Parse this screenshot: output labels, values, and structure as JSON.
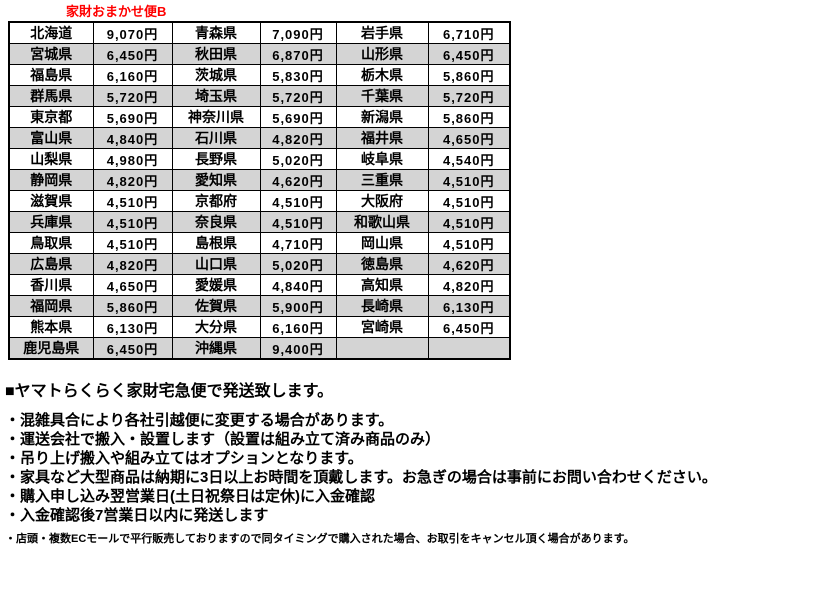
{
  "title": "家財おまかせ便B",
  "table": {
    "rows": [
      [
        "北海道",
        "9,070円",
        "青森県",
        "7,090円",
        "岩手県",
        "6,710円"
      ],
      [
        "宮城県",
        "6,450円",
        "秋田県",
        "6,870円",
        "山形県",
        "6,450円"
      ],
      [
        "福島県",
        "6,160円",
        "茨城県",
        "5,830円",
        "栃木県",
        "5,860円"
      ],
      [
        "群馬県",
        "5,720円",
        "埼玉県",
        "5,720円",
        "千葉県",
        "5,720円"
      ],
      [
        "東京都",
        "5,690円",
        "神奈川県",
        "5,690円",
        "新潟県",
        "5,860円"
      ],
      [
        "富山県",
        "4,840円",
        "石川県",
        "4,820円",
        "福井県",
        "4,650円"
      ],
      [
        "山梨県",
        "4,980円",
        "長野県",
        "5,020円",
        "岐阜県",
        "4,540円"
      ],
      [
        "静岡県",
        "4,820円",
        "愛知県",
        "4,620円",
        "三重県",
        "4,510円"
      ],
      [
        "滋賀県",
        "4,510円",
        "京都府",
        "4,510円",
        "大阪府",
        "4,510円"
      ],
      [
        "兵庫県",
        "4,510円",
        "奈良県",
        "4,510円",
        "和歌山県",
        "4,510円"
      ],
      [
        "鳥取県",
        "4,510円",
        "島根県",
        "4,710円",
        "岡山県",
        "4,510円"
      ],
      [
        "広島県",
        "4,820円",
        "山口県",
        "5,020円",
        "徳島県",
        "4,620円"
      ],
      [
        "香川県",
        "4,650円",
        "愛媛県",
        "4,840円",
        "高知県",
        "4,820円"
      ],
      [
        "福岡県",
        "5,860円",
        "佐賀県",
        "5,900円",
        "長崎県",
        "6,130円"
      ],
      [
        "熊本県",
        "6,130円",
        "大分県",
        "6,160円",
        "宮崎県",
        "6,450円"
      ],
      [
        "鹿児島県",
        "6,450円",
        "沖縄県",
        "9,400円",
        "",
        ""
      ]
    ]
  },
  "notes": {
    "heading": "■ヤマトらくらく家財宅急便で発送致します。",
    "bullets": [
      "・混雑具合により各社引越便に変更する場合があります。",
      "・運送会社で搬入・設置します（設置は組み立て済み商品のみ）",
      "・吊り上げ搬入や組み立てはオプションとなります。",
      "・家具など大型商品は納期に3日以上お時間を頂戴します。お急ぎの場合は事前にお問い合わせください。",
      "・購入申し込み翌営業日(土日祝祭日は定休)に入金確認",
      "・入金確認後7営業日以内に発送します"
    ],
    "small_note": "・店頭・複数ECモールで平行販売しておりますので同タイミングで購入された場合、お取引をキャンセル頂く場合があります。"
  },
  "colors": {
    "title_red": "#ff0000",
    "row_alt_gray": "#d4d4d4",
    "border_black": "#000000"
  }
}
